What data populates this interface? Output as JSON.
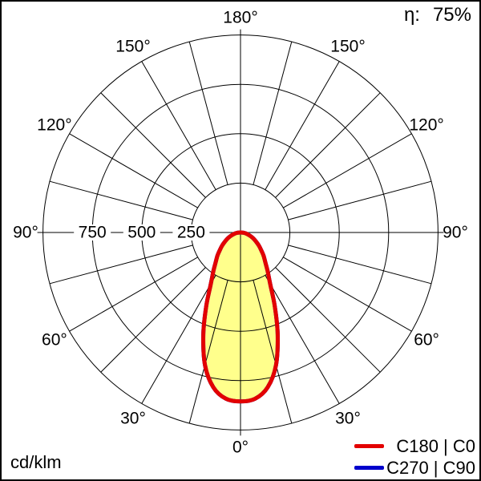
{
  "header": {
    "eta_label": "η:",
    "eta_value": "75%"
  },
  "unit_label": "cd/klm",
  "legend": [
    {
      "label": "C180 | C0",
      "color": "#e30000"
    },
    {
      "label": "C270 | C90",
      "color": "#0000cc"
    }
  ],
  "chart_data": {
    "type": "polar",
    "description": "Luminous intensity distribution curve, 0° at bottom, intensity in cd/klm",
    "unit": "cd/klm",
    "efficiency_percent": 75,
    "r_max": 1000,
    "radial_ticks": [
      250,
      500,
      750
    ],
    "angle_grid_step_deg": 15,
    "angle_labels_deg": [
      0,
      30,
      60,
      90,
      120,
      150,
      180
    ],
    "grid_color": "#000000",
    "curve_fill": "#ffff8c",
    "series": [
      {
        "name": "C270 | C90",
        "color": "#0000cc",
        "symmetric": true,
        "angles_deg": [
          0,
          5,
          10,
          15,
          20,
          25,
          30,
          35,
          40,
          45,
          50,
          55,
          60,
          65,
          70,
          75,
          80,
          85,
          90
        ],
        "values": [
          855,
          845,
          795,
          695,
          550,
          410,
          300,
          240,
          195,
          165,
          135,
          112,
          90,
          72,
          55,
          40,
          28,
          16,
          5
        ]
      },
      {
        "name": "C180 | C0",
        "color": "#e30000",
        "symmetric": true,
        "angles_deg": [
          0,
          5,
          10,
          15,
          20,
          25,
          30,
          35,
          40,
          45,
          50,
          55,
          60,
          65,
          70,
          75,
          80,
          85,
          90
        ],
        "values": [
          855,
          845,
          795,
          695,
          550,
          410,
          300,
          240,
          195,
          165,
          135,
          112,
          90,
          72,
          55,
          40,
          28,
          16,
          5
        ]
      }
    ]
  }
}
